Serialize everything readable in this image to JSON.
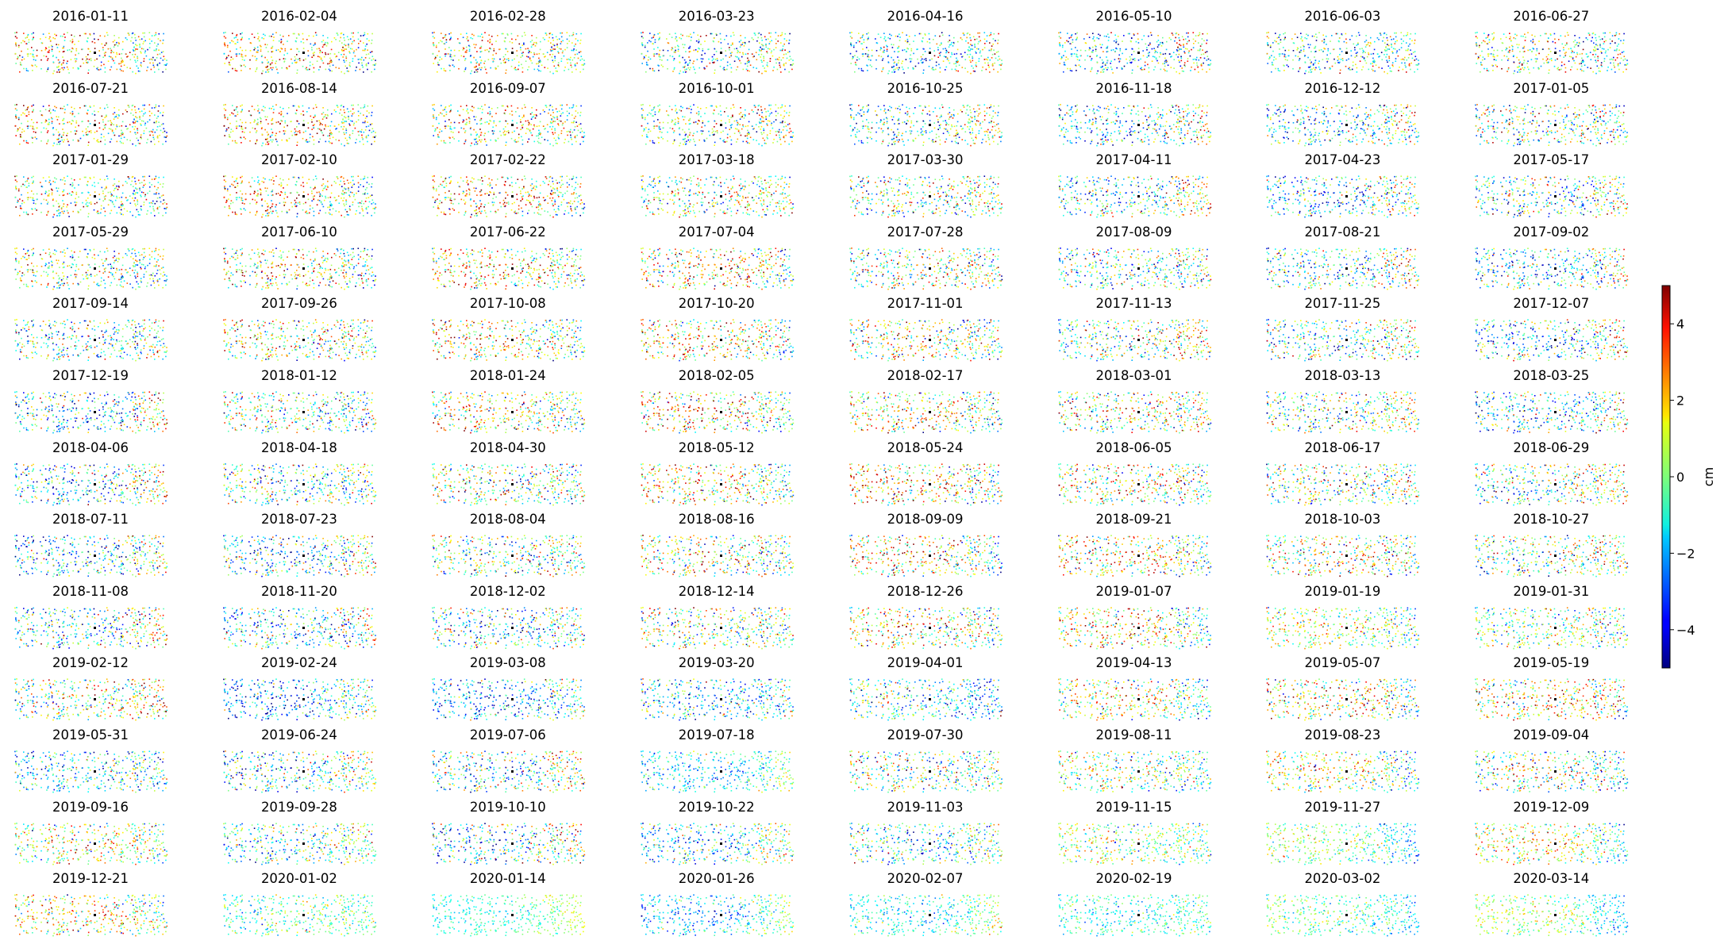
{
  "chart_data": {
    "type": "scatter",
    "title": "",
    "description_axes": "displacement maps per acquisition date (small multiples, axes hidden)",
    "colormap": "jet",
    "colorbar": {
      "label": "cm",
      "range": [
        -5,
        5
      ],
      "ticks": [
        4,
        2,
        0,
        -2,
        -4
      ]
    },
    "reference_point_color": "#000000",
    "panel_dominant_bias_cm": {
      "note": "approximate mean displacement of points per panel (data units, cm)"
    },
    "dates": [
      "2016-01-11",
      "2016-02-04",
      "2016-02-28",
      "2016-03-23",
      "2016-04-16",
      "2016-05-10",
      "2016-06-03",
      "2016-06-27",
      "2016-07-21",
      "2016-08-14",
      "2016-09-07",
      "2016-10-01",
      "2016-10-25",
      "2016-11-18",
      "2016-12-12",
      "2017-01-05",
      "2017-01-29",
      "2017-02-10",
      "2017-02-22",
      "2017-03-18",
      "2017-03-30",
      "2017-04-11",
      "2017-04-23",
      "2017-05-17",
      "2017-05-29",
      "2017-06-10",
      "2017-06-22",
      "2017-07-04",
      "2017-07-28",
      "2017-08-09",
      "2017-08-21",
      "2017-09-02",
      "2017-09-14",
      "2017-09-26",
      "2017-10-08",
      "2017-10-20",
      "2017-11-01",
      "2017-11-13",
      "2017-11-25",
      "2017-12-07",
      "2017-12-19",
      "2018-01-12",
      "2018-01-24",
      "2018-02-05",
      "2018-02-17",
      "2018-03-01",
      "2018-03-13",
      "2018-03-25",
      "2018-04-06",
      "2018-04-18",
      "2018-04-30",
      "2018-05-12",
      "2018-05-24",
      "2018-06-05",
      "2018-06-17",
      "2018-06-29",
      "2018-07-11",
      "2018-07-23",
      "2018-08-04",
      "2018-08-16",
      "2018-09-09",
      "2018-09-21",
      "2018-10-03",
      "2018-10-27",
      "2018-11-08",
      "2018-11-20",
      "2018-12-02",
      "2018-12-14",
      "2018-12-26",
      "2019-01-07",
      "2019-01-19",
      "2019-01-31",
      "2019-02-12",
      "2019-02-24",
      "2019-03-08",
      "2019-03-20",
      "2019-04-01",
      "2019-04-13",
      "2019-05-07",
      "2019-05-19",
      "2019-05-31",
      "2019-06-24",
      "2019-07-06",
      "2019-07-18",
      "2019-07-30",
      "2019-08-11",
      "2019-08-23",
      "2019-09-04",
      "2019-09-16",
      "2019-09-28",
      "2019-10-10",
      "2019-10-22",
      "2019-11-03",
      "2019-11-15",
      "2019-11-27",
      "2019-12-09",
      "2019-12-21",
      "2020-01-02",
      "2020-01-14",
      "2020-01-26",
      "2020-02-07",
      "2020-02-19",
      "2020-03-02",
      "2020-03-14"
    ],
    "biases": [
      0,
      0,
      0,
      0,
      0,
      0,
      0,
      0,
      0,
      0,
      0,
      0,
      0,
      0,
      0,
      0,
      0,
      0,
      0,
      0,
      0,
      0,
      0,
      0,
      0,
      0,
      0,
      0,
      0,
      0,
      0,
      0,
      0,
      0,
      0,
      0,
      0,
      0,
      0,
      0,
      0,
      0,
      0,
      0,
      0,
      0,
      0,
      0,
      0,
      0,
      0,
      0,
      0,
      0,
      0,
      0,
      0,
      0,
      0,
      0,
      0,
      0,
      0,
      0,
      0,
      0,
      0,
      0,
      0,
      0,
      -0.5,
      -0.5,
      1,
      -1,
      -1,
      -1,
      -1.5,
      -0.5,
      0,
      0.5,
      -1.5,
      0,
      0.5,
      -0.5,
      0,
      -0.5,
      -0.5,
      -1,
      0,
      -0.5,
      0,
      0,
      -0.5,
      0,
      -1,
      -0.5,
      0,
      -0.5,
      0,
      -0.5,
      0,
      -0.5,
      -1,
      -1
    ],
    "spreads": [
      3,
      3,
      3,
      3,
      3,
      3,
      3,
      3,
      3,
      3,
      3,
      3,
      3,
      3,
      3,
      3,
      3,
      3,
      3,
      3,
      3,
      3,
      3,
      3,
      3,
      3,
      3,
      3,
      3,
      3,
      3,
      3,
      3,
      3,
      3,
      3,
      3,
      3,
      3,
      3,
      3,
      3,
      3,
      3,
      3,
      3,
      3,
      3,
      3,
      3,
      3,
      3,
      3,
      3,
      3,
      3,
      3,
      3,
      3,
      3,
      3,
      3,
      3,
      3,
      3,
      3,
      3,
      3,
      3,
      3,
      2,
      2.5,
      3,
      2.5,
      2.5,
      2.5,
      2.5,
      2.5,
      3,
      3,
      2.5,
      3,
      3,
      1.5,
      3,
      2.5,
      2.5,
      3,
      2.5,
      2.5,
      3,
      2.5,
      2.5,
      2,
      1.5,
      2,
      2.5,
      1.5,
      0.8,
      1.5,
      1.2,
      1.2,
      1.2,
      1.2
    ]
  }
}
